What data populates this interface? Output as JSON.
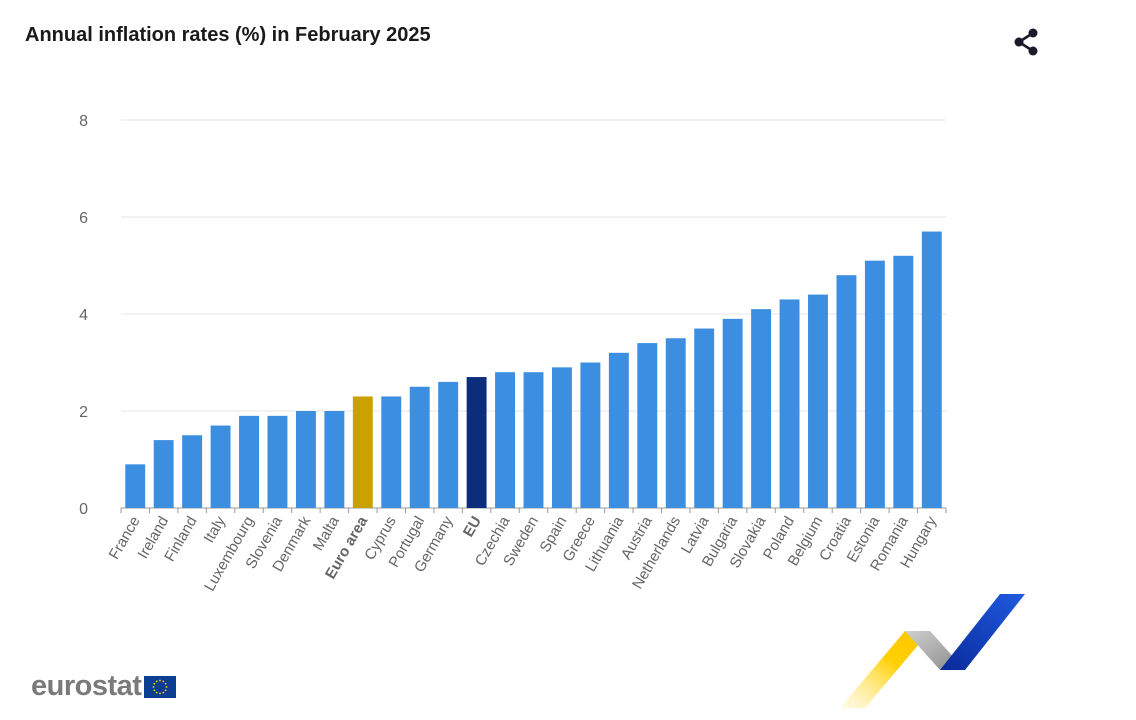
{
  "header": {
    "title": "Annual inflation rates (%) in February 2025",
    "share_icon": "share-icon"
  },
  "logo": {
    "text": "eurostat",
    "flag_icon": "eu-flag-icon"
  },
  "colors": {
    "bar": "#3b8ee0",
    "euro_area": "#c9a100",
    "eu": "#0c2c7c",
    "grid": "#e4e4e4",
    "axis_text": "#666666"
  },
  "chart_data": {
    "type": "bar",
    "title": "Annual inflation rates (%) in February 2025",
    "xlabel": "",
    "ylabel": "",
    "ylim": [
      0,
      8
    ],
    "yticks": [
      0,
      2,
      4,
      6,
      8
    ],
    "grid": true,
    "categories": [
      "France",
      "Ireland",
      "Finland",
      "Italy",
      "Luxembourg",
      "Slovenia",
      "Denmark",
      "Malta",
      "Euro area",
      "Cyprus",
      "Portugal",
      "Germany",
      "EU",
      "Czechia",
      "Sweden",
      "Spain",
      "Greece",
      "Lithuania",
      "Austria",
      "Netherlands",
      "Latvia",
      "Bulgaria",
      "Slovakia",
      "Poland",
      "Belgium",
      "Croatia",
      "Estonia",
      "Romania",
      "Hungary"
    ],
    "values": [
      0.9,
      1.4,
      1.5,
      1.7,
      1.9,
      1.9,
      2.0,
      2.0,
      2.3,
      2.3,
      2.5,
      2.6,
      2.7,
      2.8,
      2.8,
      2.9,
      3.0,
      3.2,
      3.4,
      3.5,
      3.7,
      3.9,
      4.1,
      4.3,
      4.4,
      4.8,
      5.1,
      5.2,
      5.7
    ],
    "highlighted": {
      "Euro area": "euro_area",
      "EU": "eu"
    },
    "bold_labels": [
      "Euro area",
      "EU"
    ]
  }
}
